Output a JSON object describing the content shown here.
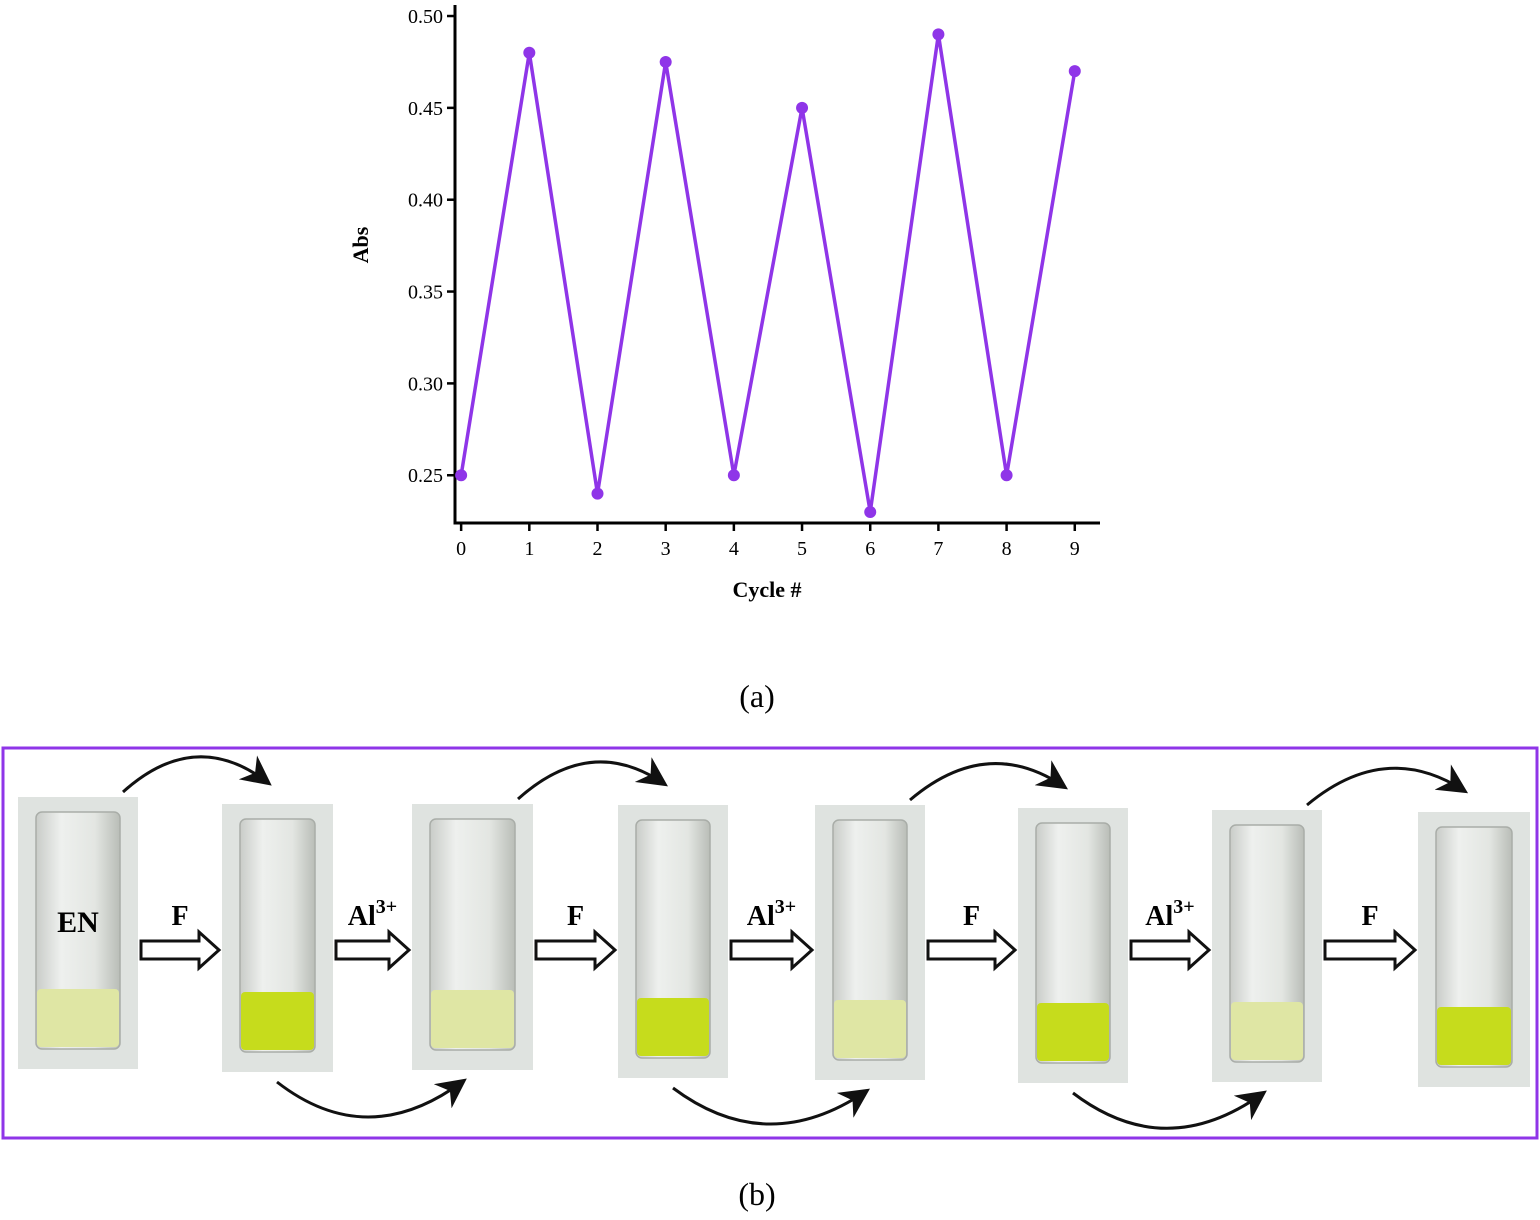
{
  "chart_data": {
    "type": "line",
    "x": [
      0,
      1,
      2,
      3,
      4,
      5,
      6,
      7,
      8,
      9
    ],
    "series": [
      {
        "name": "Abs",
        "color": "#8f35e8",
        "values": [
          0.25,
          0.48,
          0.24,
          0.475,
          0.25,
          0.45,
          0.23,
          0.49,
          0.25,
          0.47
        ]
      }
    ],
    "xlabel": "Cycle #",
    "ylabel": "Abs",
    "xlim": [
      -0.09,
      9.37
    ],
    "ylim": [
      0.224,
      0.506
    ],
    "xticks": [
      0,
      1,
      2,
      3,
      4,
      5,
      6,
      7,
      8,
      9
    ],
    "yticks": [
      0.25,
      {
        "value": 0.3,
        "label": "0.30"
      },
      0.35,
      {
        "value": 0.4,
        "label": "0.40"
      },
      0.45,
      {
        "value": 0.5,
        "label": "0.50"
      }
    ],
    "grid": false
  },
  "captions": [
    "(a)",
    "(b)"
  ],
  "diagram": {
    "start": "EN",
    "steps": [
      {
        "reagent": "F"
      },
      {
        "reagent": "Al",
        "charge": "3+"
      },
      {
        "reagent": "F"
      },
      {
        "reagent": "Al",
        "charge": "3+"
      },
      {
        "reagent": "F"
      },
      {
        "reagent": "Al",
        "charge": "3+"
      },
      {
        "reagent": "F"
      }
    ]
  }
}
